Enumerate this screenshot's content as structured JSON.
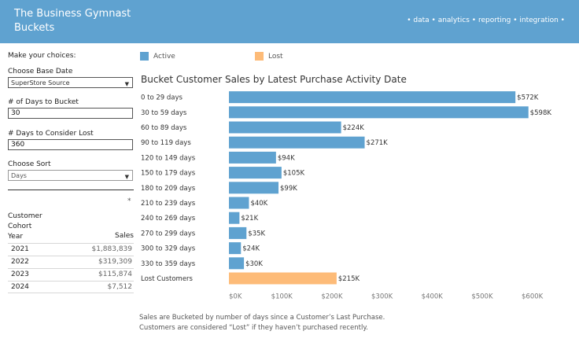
{
  "header": {
    "title_line1": "The Business Gymnast",
    "title_line2": "Buckets",
    "tagline": "• data • analytics • reporting • integration •",
    "background": "#5fa2d0"
  },
  "sidebar": {
    "section_title": "Make your choices:",
    "base_date": {
      "label": "Choose Base Date",
      "value": "SuperStore Source"
    },
    "days_to_bucket": {
      "label": "# of Days to Bucket",
      "value": "30"
    },
    "days_lost": {
      "label": "# Days to Consider Lost",
      "value": "360"
    },
    "sort": {
      "label": "Choose Sort",
      "value": "Days"
    },
    "asterisk": "*"
  },
  "cohort_table": {
    "header_lines": [
      "Customer",
      "Cohort",
      "Year"
    ],
    "sales_header": "Sales",
    "rows": [
      {
        "year": "2021",
        "sales": "$1,883,839"
      },
      {
        "year": "2022",
        "sales": "$319,309"
      },
      {
        "year": "2023",
        "sales": "$115,874"
      },
      {
        "year": "2024",
        "sales": "$7,512"
      }
    ]
  },
  "legend": {
    "active": {
      "label": "Active",
      "color": "#5fa2d0"
    },
    "lost": {
      "label": "Lost",
      "color": "#fdbb78"
    }
  },
  "chart_data": {
    "type": "bar",
    "orientation": "horizontal",
    "title": "Bucket Customer Sales by Latest Purchase Activity Date",
    "categories": [
      "0 to 29 days",
      "30 to 59 days",
      "60 to 89 days",
      "90 to 119 days",
      "120 to 149 days",
      "150 to 179 days",
      "180 to 209 days",
      "210 to 239 days",
      "240 to 269 days",
      "270 to 299 days",
      "300 to 329 days",
      "330 to 359 days",
      "Lost Customers"
    ],
    "values": [
      572,
      598,
      224,
      271,
      94,
      105,
      99,
      40,
      21,
      35,
      24,
      30,
      215
    ],
    "value_labels": [
      "$572K",
      "$598K",
      "$224K",
      "$271K",
      "$94K",
      "$105K",
      "$99K",
      "$40K",
      "$21K",
      "$35K",
      "$24K",
      "$30K",
      "$215K"
    ],
    "status": [
      "Active",
      "Active",
      "Active",
      "Active",
      "Active",
      "Active",
      "Active",
      "Active",
      "Active",
      "Active",
      "Active",
      "Active",
      "Lost"
    ],
    "x_ticks": [
      0,
      100,
      200,
      300,
      400,
      500,
      600
    ],
    "x_tick_labels": [
      "$0K",
      "$100K",
      "$200K",
      "$300K",
      "$400K",
      "$500K",
      "$600K"
    ],
    "xlim": [
      0,
      600
    ],
    "unit": "thousands USD",
    "grid": false,
    "legend_position": "top"
  },
  "footnote": {
    "line1": "Sales are Bucketed by number of days since a Customer’s Last Purchase.",
    "line2": "Customers are considered “Lost” if they haven’t purchased recently."
  }
}
